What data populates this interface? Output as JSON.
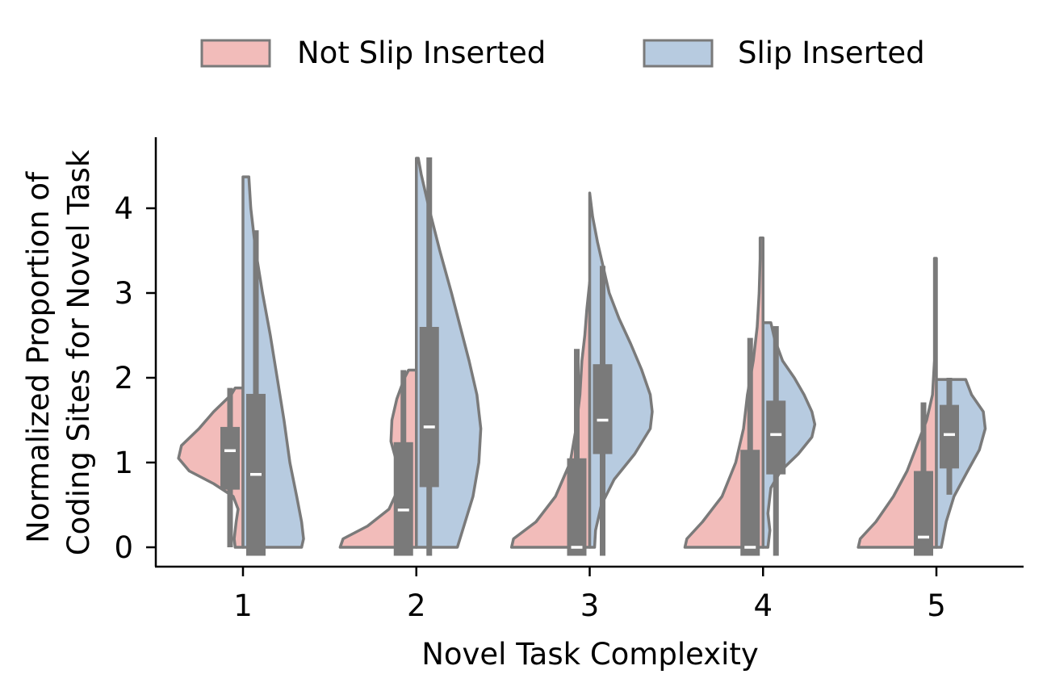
{
  "chart_data": {
    "type": "split-violin",
    "xlabel": "Novel Task Complexity",
    "ylabel_lines": [
      "Normalized Proportion of",
      "Coding Sites for Novel Task"
    ],
    "categories": [
      "1",
      "2",
      "3",
      "4",
      "5"
    ],
    "yticks": [
      0,
      1,
      2,
      3,
      4
    ],
    "ylim": [
      -0.22,
      4.82
    ],
    "grid": false,
    "legend_position": "top-center",
    "colors": {
      "not_slip": "#f2bcba",
      "slip": "#b7cbe0",
      "edge": "#7a7a7a",
      "box": "#7a7a7a",
      "median": "#ffffff"
    },
    "series": [
      {
        "name": "Not Slip Inserted",
        "side": "left",
        "violins": [
          {
            "lo": 0.0,
            "hi": 1.88,
            "widths": [
              [
                0.0,
                0.08
              ],
              [
                0.1,
                0.09
              ],
              [
                0.3,
                0.07
              ],
              [
                0.45,
                0.05
              ],
              [
                0.6,
                0.1
              ],
              [
                0.75,
                0.3
              ],
              [
                0.9,
                0.55
              ],
              [
                1.05,
                0.66
              ],
              [
                1.2,
                0.63
              ],
              [
                1.4,
                0.45
              ],
              [
                1.6,
                0.3
              ],
              [
                1.8,
                0.12
              ],
              [
                1.88,
                0.08
              ]
            ],
            "box": {
              "q1": 0.68,
              "q3": 1.42,
              "whisker_lo": 0.0,
              "whisker_hi": 1.88,
              "median": 1.14
            }
          },
          {
            "lo": 0.0,
            "hi": 2.09,
            "widths": [
              [
                0.0,
                0.78
              ],
              [
                0.1,
                0.75
              ],
              [
                0.25,
                0.5
              ],
              [
                0.45,
                0.28
              ],
              [
                0.7,
                0.18
              ],
              [
                1.0,
                0.2
              ],
              [
                1.25,
                0.26
              ],
              [
                1.5,
                0.25
              ],
              [
                1.75,
                0.2
              ],
              [
                2.0,
                0.12
              ],
              [
                2.09,
                0.08
              ]
            ],
            "box": {
              "q1": -0.1,
              "q3": 1.24,
              "whisker_lo": -0.1,
              "whisker_hi": 2.09,
              "median": 0.44
            }
          },
          {
            "lo": 0.0,
            "hi": 3.13,
            "widths": [
              [
                0.0,
                0.8
              ],
              [
                0.1,
                0.78
              ],
              [
                0.3,
                0.55
              ],
              [
                0.6,
                0.35
              ],
              [
                1.0,
                0.2
              ],
              [
                1.4,
                0.14
              ],
              [
                1.8,
                0.1
              ],
              [
                2.2,
                0.08
              ],
              [
                2.5,
                0.05
              ],
              [
                2.8,
                0.03
              ],
              [
                3.13,
                0.0
              ]
            ],
            "box": {
              "q1": -0.1,
              "q3": 1.05,
              "whisker_lo": -0.1,
              "whisker_hi": 2.34,
              "median": 0.0
            }
          },
          {
            "lo": 0.0,
            "hi": 3.65,
            "widths": [
              [
                0.0,
                0.8
              ],
              [
                0.1,
                0.78
              ],
              [
                0.3,
                0.62
              ],
              [
                0.6,
                0.42
              ],
              [
                1.0,
                0.28
              ],
              [
                1.4,
                0.2
              ],
              [
                1.8,
                0.16
              ],
              [
                2.2,
                0.1
              ],
              [
                2.6,
                0.06
              ],
              [
                3.0,
                0.04
              ],
              [
                3.4,
                0.03
              ],
              [
                3.65,
                0.03
              ]
            ],
            "box": {
              "q1": -0.1,
              "q3": 1.15,
              "whisker_lo": -0.1,
              "whisker_hi": 2.47,
              "median": 0.0
            }
          },
          {
            "lo": 0.0,
            "hi": 3.41,
            "widths": [
              [
                0.0,
                0.8
              ],
              [
                0.1,
                0.78
              ],
              [
                0.3,
                0.62
              ],
              [
                0.6,
                0.44
              ],
              [
                0.9,
                0.3
              ],
              [
                1.2,
                0.2
              ],
              [
                1.5,
                0.1
              ],
              [
                1.8,
                0.04
              ],
              [
                2.2,
                0.02
              ],
              [
                2.6,
                0.02
              ],
              [
                3.0,
                0.02
              ],
              [
                3.41,
                0.02
              ]
            ],
            "box": {
              "q1": -0.1,
              "q3": 0.9,
              "whisker_lo": -0.1,
              "whisker_hi": 1.71,
              "median": 0.12
            }
          }
        ]
      },
      {
        "name": "Slip Inserted",
        "side": "right",
        "violins": [
          {
            "lo": 0.0,
            "hi": 4.37,
            "widths": [
              [
                0.0,
                0.6
              ],
              [
                0.1,
                0.62
              ],
              [
                0.3,
                0.6
              ],
              [
                0.6,
                0.55
              ],
              [
                1.0,
                0.48
              ],
              [
                1.5,
                0.42
              ],
              [
                2.0,
                0.35
              ],
              [
                2.5,
                0.28
              ],
              [
                3.0,
                0.2
              ],
              [
                3.5,
                0.13
              ],
              [
                4.0,
                0.08
              ],
              [
                4.37,
                0.06
              ]
            ],
            "box": {
              "q1": -0.1,
              "q3": 1.81,
              "whisker_lo": -0.1,
              "whisker_hi": 3.74,
              "median": 0.86
            }
          },
          {
            "lo": 0.0,
            "hi": 4.59,
            "widths": [
              [
                0.0,
                0.42
              ],
              [
                0.3,
                0.5
              ],
              [
                0.6,
                0.58
              ],
              [
                1.0,
                0.64
              ],
              [
                1.4,
                0.66
              ],
              [
                1.8,
                0.62
              ],
              [
                2.2,
                0.54
              ],
              [
                2.6,
                0.45
              ],
              [
                3.0,
                0.36
              ],
              [
                3.5,
                0.24
              ],
              [
                4.0,
                0.13
              ],
              [
                4.4,
                0.05
              ],
              [
                4.59,
                0.02
              ]
            ],
            "box": {
              "q1": 0.71,
              "q3": 2.6,
              "whisker_lo": -0.1,
              "whisker_hi": 4.6,
              "median": 1.42
            }
          },
          {
            "lo": 0.0,
            "hi": 4.18,
            "widths": [
              [
                0.0,
                0.05
              ],
              [
                0.2,
                0.06
              ],
              [
                0.5,
                0.12
              ],
              [
                0.8,
                0.25
              ],
              [
                1.1,
                0.46
              ],
              [
                1.4,
                0.62
              ],
              [
                1.6,
                0.64
              ],
              [
                1.8,
                0.62
              ],
              [
                2.1,
                0.53
              ],
              [
                2.4,
                0.42
              ],
              [
                2.7,
                0.3
              ],
              [
                3.0,
                0.2
              ],
              [
                3.3,
                0.14
              ],
              [
                3.6,
                0.08
              ],
              [
                3.9,
                0.03
              ],
              [
                4.18,
                0.0
              ]
            ],
            "box": {
              "q1": 1.1,
              "q3": 2.16,
              "whisker_lo": -0.1,
              "whisker_hi": 3.32,
              "median": 1.5
            }
          },
          {
            "lo": 0.0,
            "hi": 2.65,
            "widths": [
              [
                0.0,
                0.05
              ],
              [
                0.2,
                0.07
              ],
              [
                0.4,
                0.05
              ],
              [
                0.7,
                0.08
              ],
              [
                0.9,
                0.18
              ],
              [
                1.1,
                0.36
              ],
              [
                1.3,
                0.5
              ],
              [
                1.45,
                0.53
              ],
              [
                1.6,
                0.5
              ],
              [
                1.8,
                0.42
              ],
              [
                2.0,
                0.32
              ],
              [
                2.2,
                0.2
              ],
              [
                2.45,
                0.12
              ],
              [
                2.65,
                0.08
              ]
            ],
            "box": {
              "q1": 0.86,
              "q3": 1.73,
              "whisker_lo": -0.1,
              "whisker_hi": 2.61,
              "median": 1.33
            }
          },
          {
            "lo": 0.0,
            "hi": 1.98,
            "widths": [
              [
                0.0,
                0.05
              ],
              [
                0.3,
                0.1
              ],
              [
                0.6,
                0.18
              ],
              [
                0.9,
                0.32
              ],
              [
                1.15,
                0.44
              ],
              [
                1.4,
                0.5
              ],
              [
                1.6,
                0.48
              ],
              [
                1.8,
                0.36
              ],
              [
                1.98,
                0.3
              ]
            ],
            "box": {
              "q1": 0.93,
              "q3": 1.68,
              "whisker_lo": 0.62,
              "whisker_hi": 2.0,
              "median": 1.33
            }
          }
        ]
      }
    ]
  }
}
